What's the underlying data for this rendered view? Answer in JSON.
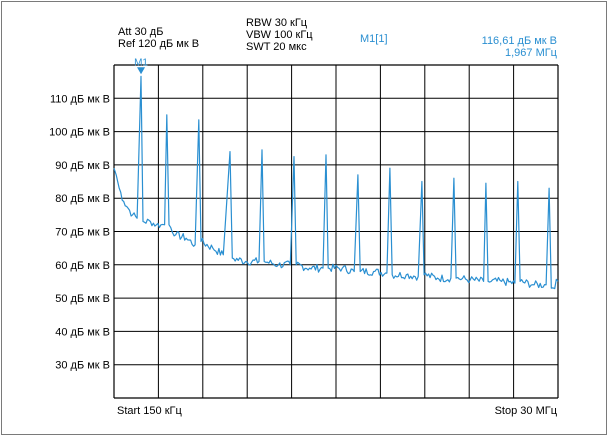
{
  "header": {
    "att": "Att  30 дБ",
    "ref": "Ref  120 дБ мк В",
    "rbw": "RBW 30 кГц",
    "vbw": "VBW 100 кГц",
    "swt": "SWT 20 мкс",
    "marker_id": "M1[1]",
    "marker_level": "116,61 дБ мк В",
    "marker_freq": "1,967 МГц"
  },
  "footer": {
    "start": "Start 150 кГц",
    "stop": "Stop 30 МГц"
  },
  "marker_label": "M1",
  "colors": {
    "trace": "#2a8fd1",
    "grid": "#000000",
    "marker_text": "#2a8fd1"
  },
  "chart_data": {
    "type": "line",
    "title": "",
    "xlabel": "",
    "ylabel": "",
    "xlim": [
      0.15,
      30
    ],
    "x_unit": "МГц",
    "ylim": [
      20,
      120
    ],
    "y_ticks": [
      30,
      40,
      50,
      60,
      70,
      80,
      90,
      100,
      110
    ],
    "y_tick_labels": [
      "30 дБ мк В",
      "40 дБ мк В",
      "50 дБ мк В",
      "60 дБ мк В",
      "70 дБ мк В",
      "80 дБ мк В",
      "90 дБ мк В",
      "100 дБ мк В",
      "110 дБ мк В"
    ],
    "grid": true,
    "marker": {
      "name": "M1",
      "x": 1.967,
      "y": 116.61
    },
    "series": [
      {
        "color": "#2a8fd1",
        "points": [
          [
            0.15,
            89
          ],
          [
            0.3,
            87
          ],
          [
            0.5,
            83
          ],
          [
            0.8,
            79
          ],
          [
            1.1,
            77
          ],
          [
            1.4,
            75
          ],
          [
            1.7,
            74
          ],
          [
            1.967,
            116.61
          ],
          [
            2.1,
            73
          ],
          [
            2.6,
            73
          ],
          [
            3.0,
            72
          ],
          [
            3.3,
            72
          ],
          [
            3.55,
            72
          ],
          [
            3.7,
            105
          ],
          [
            3.85,
            72
          ],
          [
            4.3,
            69
          ],
          [
            5.0,
            68
          ],
          [
            5.6,
            66
          ],
          [
            5.85,
            103.5
          ],
          [
            6.0,
            67
          ],
          [
            6.8,
            65
          ],
          [
            7.5,
            63
          ],
          [
            7.95,
            94
          ],
          [
            8.1,
            62
          ],
          [
            9.0,
            61
          ],
          [
            9.9,
            61
          ],
          [
            10.1,
            94.5
          ],
          [
            10.25,
            61
          ],
          [
            11.2,
            60
          ],
          [
            12.0,
            60
          ],
          [
            12.25,
            92.5
          ],
          [
            12.4,
            60
          ],
          [
            13.3,
            59
          ],
          [
            14.2,
            59
          ],
          [
            14.4,
            93
          ],
          [
            14.55,
            59
          ],
          [
            15.5,
            59
          ],
          [
            16.3,
            58
          ],
          [
            16.55,
            87
          ],
          [
            16.7,
            58
          ],
          [
            17.6,
            58
          ],
          [
            18.5,
            57.5
          ],
          [
            18.7,
            89
          ],
          [
            18.85,
            57
          ],
          [
            19.8,
            57
          ],
          [
            20.6,
            56.5
          ],
          [
            20.85,
            85
          ],
          [
            21.0,
            57
          ],
          [
            21.9,
            56
          ],
          [
            22.8,
            56
          ],
          [
            23.0,
            86
          ],
          [
            23.15,
            56
          ],
          [
            24.1,
            55.5
          ],
          [
            25.0,
            55
          ],
          [
            25.15,
            84.5
          ],
          [
            25.3,
            55
          ],
          [
            26.2,
            55
          ],
          [
            27.1,
            54.5
          ],
          [
            27.3,
            85
          ],
          [
            27.45,
            55
          ],
          [
            28.4,
            54
          ],
          [
            29.2,
            54
          ],
          [
            29.4,
            83
          ],
          [
            29.55,
            53
          ],
          [
            30.0,
            55
          ]
        ]
      }
    ]
  }
}
